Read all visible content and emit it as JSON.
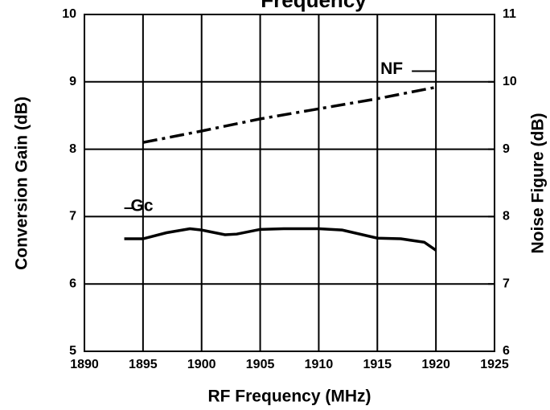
{
  "chart_data": {
    "type": "line",
    "title": "Frequency",
    "x_label": "RF Frequency (MHz)",
    "y_label": "Conversion Gain (dB)",
    "y2_label": "Noise Figure (dB)",
    "xlim": [
      1890,
      1925
    ],
    "xticks": [
      1890,
      1895,
      1900,
      1905,
      1910,
      1915,
      1920,
      1925
    ],
    "ylim": [
      5,
      10
    ],
    "yticks": [
      5,
      6,
      7,
      8,
      9,
      10
    ],
    "y2lim": [
      6,
      11
    ],
    "y2ticks": [
      6,
      7,
      8,
      9,
      10,
      11
    ],
    "grid": true,
    "series": [
      {
        "name": "Gc",
        "color": "#000000",
        "style": "solid",
        "x": [
          1893.4,
          1895,
          1897,
          1899,
          1900,
          1902,
          1903,
          1905,
          1907,
          1910,
          1912,
          1915,
          1917,
          1919,
          1920
        ],
        "values": [
          6.67,
          6.67,
          6.76,
          6.82,
          6.8,
          6.73,
          6.74,
          6.81,
          6.82,
          6.82,
          6.8,
          6.68,
          6.67,
          6.62,
          6.5
        ]
      },
      {
        "name": "NF",
        "color": "#000000",
        "style": "dashdot",
        "axis": "y2",
        "x": [
          1895,
          1900,
          1905,
          1910,
          1915,
          1920
        ],
        "values": [
          9.1,
          9.27,
          9.45,
          9.6,
          9.75,
          9.92
        ]
      }
    ]
  }
}
